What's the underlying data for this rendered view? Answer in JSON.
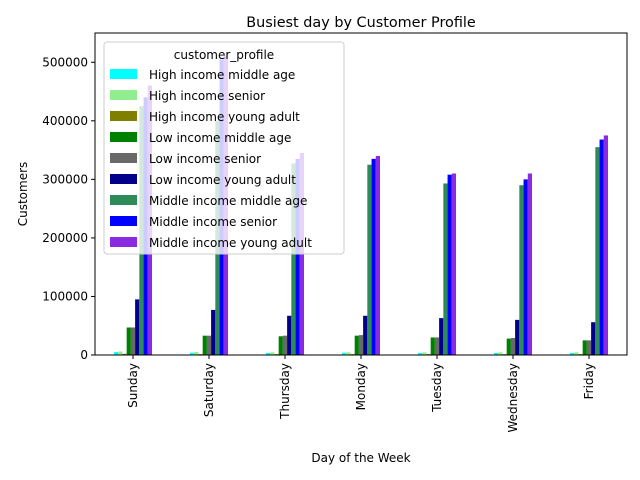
{
  "chart_data": {
    "type": "bar",
    "title": "Busiest day by Customer Profile",
    "xlabel": "Day of the Week",
    "ylabel": "Customers",
    "ylim": [
      0,
      550000
    ],
    "yticks": [
      0,
      100000,
      200000,
      300000,
      400000,
      500000
    ],
    "ytick_labels": [
      "0",
      "100000",
      "200000",
      "300000",
      "400000",
      "500000"
    ],
    "grid": false,
    "legend": {
      "title": "customer_profile",
      "placement": "upper-left"
    },
    "categories": [
      "Sunday",
      "Saturday",
      "Thursday",
      "Monday",
      "Tuesday",
      "Wednesday",
      "Friday"
    ],
    "series": [
      {
        "name": "High income middle age",
        "color": "#00ffff",
        "values": [
          5000,
          4000,
          3500,
          4000,
          3500,
          3500,
          3500
        ]
      },
      {
        "name": "High income senior",
        "color": "#90ee90",
        "values": [
          6000,
          5000,
          4500,
          4500,
          4500,
          4500,
          4500
        ]
      },
      {
        "name": "High income young adult",
        "color": "#808000",
        "values": [
          2000,
          1500,
          1500,
          1500,
          1500,
          1500,
          1500
        ]
      },
      {
        "name": "Low income middle age",
        "color": "#008000",
        "values": [
          47000,
          33000,
          32000,
          33000,
          30000,
          28000,
          25000
        ]
      },
      {
        "name": "Low income senior",
        "color": "#696969",
        "values": [
          47000,
          33000,
          33000,
          34000,
          30000,
          29000,
          25000
        ]
      },
      {
        "name": "Low income young adult",
        "color": "#00008b",
        "values": [
          95000,
          77000,
          67000,
          67000,
          63000,
          60000,
          56000
        ]
      },
      {
        "name": "Middle income middle age",
        "color": "#2e8b57",
        "values": [
          425000,
          400000,
          327000,
          325000,
          293000,
          290000,
          355000
        ]
      },
      {
        "name": "Middle income senior",
        "color": "#0000ff",
        "values": [
          440000,
          505000,
          335000,
          335000,
          308000,
          300000,
          368000
        ]
      },
      {
        "name": "Middle income young adult",
        "color": "#8a2be2",
        "values": [
          460000,
          512000,
          345000,
          340000,
          310000,
          310000,
          375000
        ]
      }
    ]
  }
}
